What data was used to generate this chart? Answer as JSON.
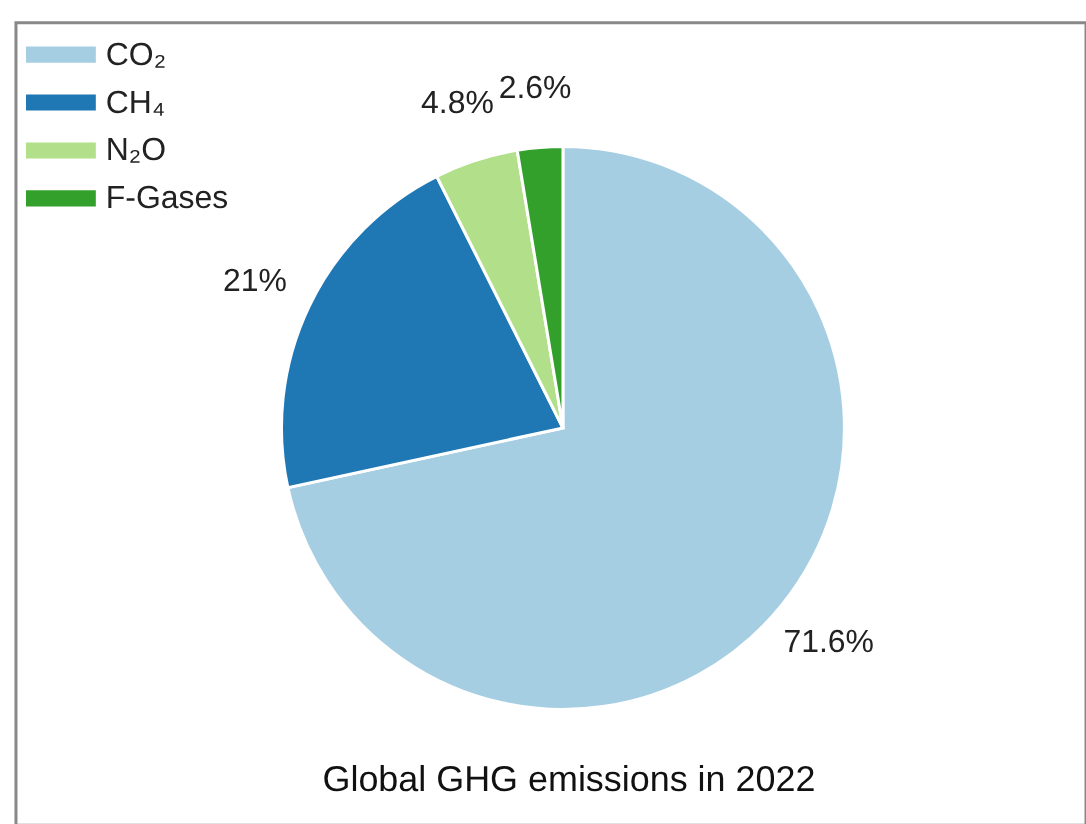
{
  "chart_data": {
    "type": "pie",
    "title": "Global GHG emissions in 2022",
    "categories": [
      "CO₂",
      "CH₄",
      "N₂O",
      "F-Gases"
    ],
    "values": [
      71.6,
      21,
      4.8,
      2.6
    ],
    "colors": [
      "#a6cee3",
      "#1f78b4",
      "#b2df8a",
      "#33a02c"
    ],
    "value_labels": [
      "71.6%",
      "21%",
      "4.8%",
      "2.6%"
    ],
    "legend": "top left"
  }
}
